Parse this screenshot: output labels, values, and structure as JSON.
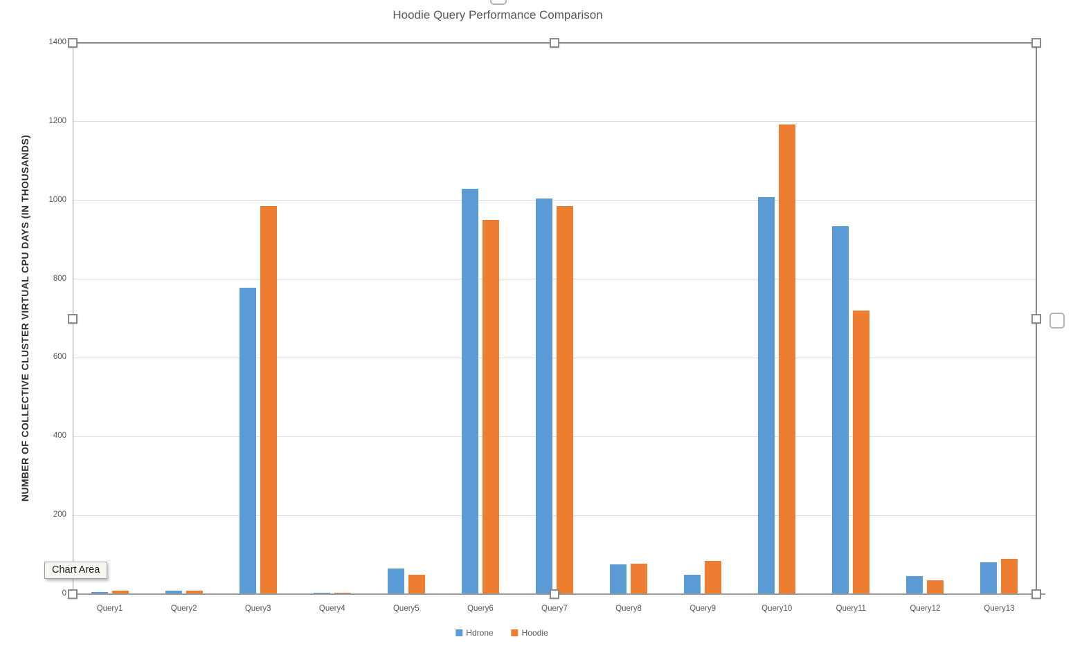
{
  "chart_data": {
    "type": "bar",
    "title": "Hoodie Query Performance Comparison",
    "ylabel": "NUMBER OF COLLECTIVE CLUSTER VIRTUAL CPU DAYS (IN THOUSANDS)",
    "xlabel": "",
    "ylim": [
      0,
      1400
    ],
    "ytick_step": 200,
    "ytick_labels": [
      "0",
      "200",
      "400",
      "600",
      "800",
      "1000",
      "1200",
      "1400"
    ],
    "grid": true,
    "legend_position": "bottom",
    "categories": [
      "Query1",
      "Query2",
      "Query3",
      "Query4",
      "Query5",
      "Query6",
      "Query7",
      "Query8",
      "Query9",
      "Query10",
      "Query11",
      "Query12",
      "Query13"
    ],
    "series": [
      {
        "name": "Hdrone",
        "color": "#5B9BD5",
        "values": [
          5,
          8,
          778,
          4,
          65,
          1030,
          1005,
          75,
          50,
          1008,
          935,
          45,
          80
        ]
      },
      {
        "name": "Hoodie",
        "color": "#ED7D31",
        "values": [
          8,
          8,
          985,
          4,
          50,
          950,
          985,
          77,
          85,
          1192,
          720,
          35,
          90
        ]
      }
    ]
  },
  "overlay": {
    "tooltip_label": "Chart Area"
  },
  "colors": {
    "series_hdrone": "#5B9BD5",
    "series_hoodie": "#ED7D31",
    "gridline": "#dcdcdc",
    "axis_text": "#595959",
    "title_text": "#595959",
    "selection_border": "#8a8a8a"
  }
}
